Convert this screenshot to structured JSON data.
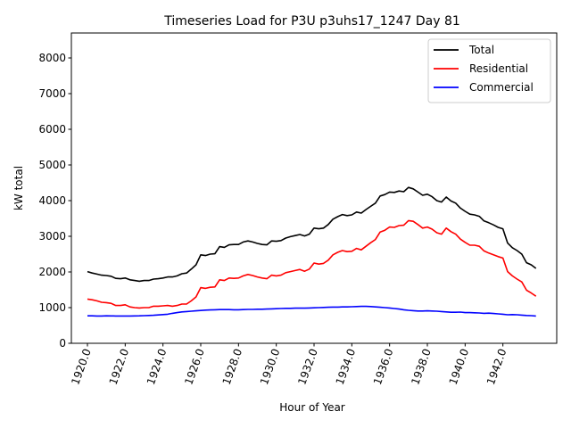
{
  "chart_data": {
    "type": "line",
    "title": "Timeseries Load for P3U p3uhs17_1247  Day 81",
    "xlabel": "Hour of Year",
    "ylabel": "kW total",
    "xlim": [
      1919.15,
      1944.85
    ],
    "ylim": [
      0,
      8700
    ],
    "xticks": [
      1920,
      1922,
      1924,
      1926,
      1928,
      1930,
      1932,
      1934,
      1936,
      1938,
      1940,
      1942
    ],
    "xtick_labels": [
      "1920.0",
      "1922.0",
      "1924.0",
      "1926.0",
      "1928.0",
      "1930.0",
      "1932.0",
      "1934.0",
      "1936.0",
      "1938.0",
      "1940.0",
      "1942.0"
    ],
    "yticks": [
      0,
      1000,
      2000,
      3000,
      4000,
      5000,
      6000,
      7000,
      8000
    ],
    "ytick_labels": [
      "0",
      "1000",
      "2000",
      "3000",
      "4000",
      "5000",
      "6000",
      "7000",
      "8000"
    ],
    "grid": false,
    "legend_position": "top-right",
    "x": [
      1920.0,
      1920.25,
      1920.5,
      1920.75,
      1921.0,
      1921.25,
      1921.5,
      1921.75,
      1922.0,
      1922.25,
      1922.5,
      1922.75,
      1923.0,
      1923.25,
      1923.5,
      1923.75,
      1924.0,
      1924.25,
      1924.5,
      1924.75,
      1925.0,
      1925.25,
      1925.5,
      1925.75,
      1926.0,
      1926.25,
      1926.5,
      1926.75,
      1927.0,
      1927.25,
      1927.5,
      1927.75,
      1928.0,
      1928.25,
      1928.5,
      1928.75,
      1929.0,
      1929.25,
      1929.5,
      1929.75,
      1930.0,
      1930.25,
      1930.5,
      1930.75,
      1931.0,
      1931.25,
      1931.5,
      1931.75,
      1932.0,
      1932.25,
      1932.5,
      1932.75,
      1933.0,
      1933.25,
      1933.5,
      1933.75,
      1934.0,
      1934.25,
      1934.5,
      1934.75,
      1935.0,
      1935.25,
      1935.5,
      1935.75,
      1936.0,
      1936.25,
      1936.5,
      1936.75,
      1937.0,
      1937.25,
      1937.5,
      1937.75,
      1938.0,
      1938.25,
      1938.5,
      1938.75,
      1939.0,
      1939.25,
      1939.5,
      1939.75,
      1940.0,
      1940.25,
      1940.5,
      1940.75,
      1941.0,
      1941.25,
      1941.5,
      1941.75,
      1942.0,
      1942.25,
      1942.5,
      1942.75,
      1943.0,
      1943.25,
      1943.5,
      1943.75
    ],
    "series": [
      {
        "name": "Total",
        "color": "#000000",
        "values": [
          2010,
          1970,
          1940,
          1910,
          1900,
          1880,
          1820,
          1810,
          1830,
          1780,
          1760,
          1740,
          1760,
          1760,
          1800,
          1810,
          1830,
          1860,
          1860,
          1890,
          1950,
          1970,
          2080,
          2200,
          2480,
          2460,
          2500,
          2510,
          2710,
          2690,
          2760,
          2770,
          2770,
          2840,
          2870,
          2840,
          2800,
          2770,
          2760,
          2870,
          2860,
          2880,
          2950,
          2990,
          3020,
          3050,
          3010,
          3060,
          3230,
          3210,
          3230,
          3330,
          3480,
          3550,
          3610,
          3580,
          3600,
          3680,
          3650,
          3750,
          3840,
          3930,
          4130,
          4170,
          4240,
          4230,
          4270,
          4250,
          4370,
          4330,
          4240,
          4150,
          4180,
          4110,
          4000,
          3960,
          4100,
          3990,
          3930,
          3790,
          3700,
          3620,
          3600,
          3560,
          3430,
          3380,
          3320,
          3250,
          3210,
          2810,
          2680,
          2600,
          2500,
          2260,
          2200,
          2100
        ]
      },
      {
        "name": "Residential",
        "color": "#ff0000",
        "values": [
          1240,
          1220,
          1190,
          1150,
          1140,
          1120,
          1060,
          1060,
          1080,
          1020,
          1000,
          990,
          1000,
          1000,
          1040,
          1040,
          1050,
          1060,
          1040,
          1060,
          1100,
          1100,
          1190,
          1300,
          1560,
          1540,
          1570,
          1580,
          1780,
          1760,
          1830,
          1820,
          1830,
          1890,
          1930,
          1900,
          1860,
          1830,
          1810,
          1910,
          1890,
          1910,
          1980,
          2010,
          2040,
          2070,
          2020,
          2080,
          2250,
          2220,
          2240,
          2330,
          2480,
          2550,
          2600,
          2570,
          2580,
          2660,
          2620,
          2720,
          2820,
          2910,
          3120,
          3170,
          3260,
          3250,
          3300,
          3310,
          3440,
          3420,
          3330,
          3230,
          3260,
          3200,
          3100,
          3060,
          3230,
          3130,
          3060,
          2920,
          2830,
          2750,
          2750,
          2720,
          2590,
          2530,
          2480,
          2430,
          2390,
          2010,
          1890,
          1800,
          1720,
          1490,
          1410,
          1320
        ]
      },
      {
        "name": "Commercial",
        "color": "#0000ff",
        "values": [
          770,
          770,
          765,
          765,
          770,
          768,
          765,
          765,
          765,
          765,
          768,
          770,
          775,
          780,
          785,
          795,
          805,
          815,
          840,
          860,
          880,
          890,
          900,
          910,
          920,
          930,
          935,
          940,
          945,
          945,
          945,
          940,
          940,
          945,
          950,
          950,
          955,
          955,
          960,
          965,
          970,
          975,
          980,
          980,
          985,
          985,
          985,
          990,
          995,
          1000,
          1005,
          1010,
          1015,
          1015,
          1020,
          1020,
          1025,
          1030,
          1035,
          1035,
          1030,
          1020,
          1010,
          1000,
          990,
          975,
          960,
          940,
          925,
          915,
          905,
          905,
          910,
          905,
          900,
          890,
          880,
          870,
          870,
          875,
          860,
          860,
          855,
          850,
          840,
          845,
          835,
          825,
          815,
          800,
          805,
          800,
          790,
          780,
          775,
          765
        ]
      }
    ]
  }
}
